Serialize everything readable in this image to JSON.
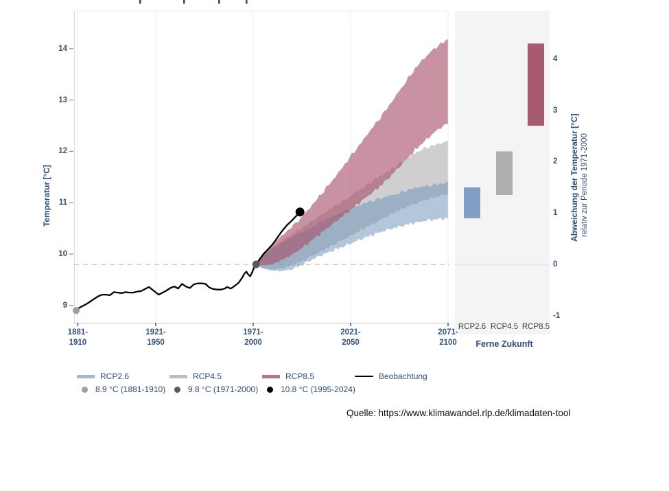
{
  "page": {
    "background": "#ffffff"
  },
  "source_note": "Quelle: https://www.klimawandel.rlp.de/klimadaten-tool",
  "legend": {
    "series": [
      {
        "label": "RCP2.6"
      },
      {
        "label": "RCP4.5"
      },
      {
        "label": "RCP8.5"
      },
      {
        "label": "Beobachtung"
      }
    ],
    "reference_points": [
      {
        "label": "8.9 °C (1881-1910)",
        "color": "#9e9e9e"
      },
      {
        "label": "9.8 °C (1971-2000)",
        "color": "#595959"
      },
      {
        "label": "10.8 °C (1995-2024)",
        "color": "#000000"
      }
    ]
  },
  "chart_data": {
    "type": "area",
    "y_axis_left": {
      "title": "Temperatur [°C]",
      "ticks": [
        9,
        10,
        11,
        12,
        13,
        14
      ],
      "range": [
        8.6,
        14.7
      ]
    },
    "y_axis_right": {
      "title_line1": "Abweichung der Temperatur [°C]",
      "title_line2": "relativ zur Periode 1971-2000",
      "ticks": [
        -1,
        0,
        1,
        2,
        3,
        4
      ]
    },
    "x_axis": {
      "ticks": [
        {
          "line1": "1881-",
          "line2": "1910",
          "year_center": 1895.5
        },
        {
          "line1": "1921-",
          "line2": "1950",
          "year_center": 1935.5
        },
        {
          "line1": "1971-",
          "line2": "2000",
          "year_center": 1985.5
        },
        {
          "line1": "2021-",
          "line2": "2050",
          "year_center": 2035.5
        },
        {
          "line1": "2071-",
          "line2": "2100",
          "year_center": 2085.5
        }
      ]
    },
    "baseline": {
      "temp": 9.8,
      "anomaly": 0,
      "color": "#c6c6c6",
      "panel_line_color": "#dde6f2"
    },
    "gridline_color": "#e7ecf5",
    "observation": {
      "label": "Beobachtung",
      "color": "#000000",
      "points": [
        [
          1894.5,
          8.92
        ],
        [
          1896,
          8.95
        ],
        [
          1898,
          8.99
        ],
        [
          1900,
          9.03
        ],
        [
          1902,
          9.08
        ],
        [
          1904,
          9.13
        ],
        [
          1906,
          9.18
        ],
        [
          1908,
          9.21
        ],
        [
          1910,
          9.21
        ],
        [
          1912,
          9.2
        ],
        [
          1914,
          9.26
        ],
        [
          1916,
          9.25
        ],
        [
          1918,
          9.24
        ],
        [
          1920,
          9.26
        ],
        [
          1922,
          9.25
        ],
        [
          1924,
          9.25
        ],
        [
          1926,
          9.27
        ],
        [
          1928,
          9.28
        ],
        [
          1930,
          9.32
        ],
        [
          1932,
          9.36
        ],
        [
          1934,
          9.3
        ],
        [
          1936,
          9.24
        ],
        [
          1937,
          9.21
        ],
        [
          1939,
          9.25
        ],
        [
          1941,
          9.29
        ],
        [
          1943,
          9.34
        ],
        [
          1945,
          9.37
        ],
        [
          1947,
          9.33
        ],
        [
          1949,
          9.42
        ],
        [
          1951,
          9.37
        ],
        [
          1953,
          9.34
        ],
        [
          1955,
          9.41
        ],
        [
          1957,
          9.43
        ],
        [
          1959,
          9.43
        ],
        [
          1961,
          9.42
        ],
        [
          1963,
          9.35
        ],
        [
          1965,
          9.32
        ],
        [
          1967,
          9.31
        ],
        [
          1969,
          9.31
        ],
        [
          1971,
          9.33
        ],
        [
          1972,
          9.36
        ],
        [
          1974,
          9.33
        ],
        [
          1976,
          9.38
        ],
        [
          1978,
          9.44
        ],
        [
          1980,
          9.55
        ],
        [
          1981,
          9.62
        ],
        [
          1982,
          9.66
        ],
        [
          1983,
          9.6
        ],
        [
          1984,
          9.57
        ],
        [
          1985,
          9.65
        ],
        [
          1986,
          9.74
        ],
        [
          1987,
          9.8
        ],
        [
          1989,
          9.91
        ],
        [
          1991,
          10.01
        ],
        [
          1993,
          10.09
        ],
        [
          1995,
          10.17
        ],
        [
          1997,
          10.27
        ],
        [
          1999,
          10.38
        ],
        [
          2001,
          10.48
        ],
        [
          2003,
          10.57
        ],
        [
          2005,
          10.64
        ],
        [
          2007,
          10.72
        ],
        [
          2009.5,
          10.82
        ]
      ]
    },
    "reference_points": [
      {
        "label": "8.9 °C (1881-1910)",
        "year": 1894.5,
        "temp": 8.9,
        "color": "#9e9e9e",
        "radius": 5
      },
      {
        "label": "9.8 °C (1971-2000)",
        "year": 1987,
        "temp": 9.8,
        "color": "#595959",
        "radius": 5.5
      },
      {
        "label": "10.8 °C (1995-2024)",
        "year": 2009.5,
        "temp": 10.82,
        "color": "#000000",
        "radius": 6.5
      }
    ],
    "scenarios": [
      {
        "label": "RCP2.6",
        "legend_color": "#9fb9d0",
        "band_color": "#6f94b8",
        "band_opacity": 0.52,
        "bar_color": "#7fa0c4",
        "far_future_range": [
          0.9,
          1.5
        ],
        "band": [
          [
            1987,
            9.8,
            9.8
          ],
          [
            1990,
            9.72,
            9.95
          ],
          [
            1995,
            9.68,
            10.1
          ],
          [
            2000,
            9.67,
            10.22
          ],
          [
            2005,
            9.7,
            10.33
          ],
          [
            2010,
            9.78,
            10.42
          ],
          [
            2015,
            9.88,
            10.5
          ],
          [
            2020,
            9.97,
            10.62
          ],
          [
            2025,
            10.05,
            10.72
          ],
          [
            2030,
            10.12,
            10.8
          ],
          [
            2035,
            10.2,
            10.88
          ],
          [
            2040,
            10.28,
            10.95
          ],
          [
            2045,
            10.35,
            11.02
          ],
          [
            2050,
            10.42,
            11.08
          ],
          [
            2055,
            10.48,
            11.13
          ],
          [
            2060,
            10.53,
            11.18
          ],
          [
            2065,
            10.58,
            11.25
          ],
          [
            2070,
            10.62,
            11.3
          ],
          [
            2075,
            10.66,
            11.33
          ],
          [
            2080,
            10.68,
            11.36
          ],
          [
            2085.5,
            10.7,
            11.4
          ]
        ]
      },
      {
        "label": "RCP4.5",
        "legend_color": "#bfbdbd",
        "band_color": "#a0a0a0",
        "band_opacity": 0.5,
        "bar_color": "#b0aeae",
        "far_future_range": [
          1.35,
          2.2
        ],
        "band": [
          [
            1987,
            9.8,
            9.8
          ],
          [
            1990,
            9.74,
            9.96
          ],
          [
            1995,
            9.7,
            10.12
          ],
          [
            2000,
            9.72,
            10.25
          ],
          [
            2005,
            9.78,
            10.38
          ],
          [
            2010,
            9.85,
            10.5
          ],
          [
            2015,
            9.95,
            10.62
          ],
          [
            2020,
            10.05,
            10.75
          ],
          [
            2025,
            10.15,
            10.88
          ],
          [
            2030,
            10.25,
            11.0
          ],
          [
            2035,
            10.35,
            11.12
          ],
          [
            2040,
            10.45,
            11.25
          ],
          [
            2045,
            10.55,
            11.38
          ],
          [
            2050,
            10.65,
            11.5
          ],
          [
            2055,
            10.75,
            11.62
          ],
          [
            2060,
            10.85,
            11.75
          ],
          [
            2065,
            10.93,
            11.88
          ],
          [
            2070,
            11.0,
            12.0
          ],
          [
            2075,
            11.07,
            12.08
          ],
          [
            2080,
            11.12,
            12.14
          ],
          [
            2085.5,
            11.18,
            12.2
          ]
        ]
      },
      {
        "label": "RCP8.5",
        "legend_color": "#bd7287",
        "band_color": "#a64f69",
        "band_opacity": 0.62,
        "bar_color": "#a85a70",
        "far_future_range": [
          2.7,
          4.3
        ],
        "band": [
          [
            1987,
            9.8,
            9.8
          ],
          [
            1990,
            9.78,
            10.0
          ],
          [
            1995,
            9.8,
            10.18
          ],
          [
            2000,
            9.88,
            10.35
          ],
          [
            2005,
            9.98,
            10.52
          ],
          [
            2010,
            10.1,
            10.7
          ],
          [
            2015,
            10.25,
            10.92
          ],
          [
            2020,
            10.4,
            11.15
          ],
          [
            2025,
            10.55,
            11.38
          ],
          [
            2030,
            10.7,
            11.62
          ],
          [
            2035,
            10.85,
            11.88
          ],
          [
            2040,
            11.0,
            12.12
          ],
          [
            2045,
            11.15,
            12.38
          ],
          [
            2050,
            11.3,
            12.62
          ],
          [
            2055,
            11.48,
            12.88
          ],
          [
            2060,
            11.68,
            13.15
          ],
          [
            2065,
            11.88,
            13.42
          ],
          [
            2070,
            12.08,
            13.68
          ],
          [
            2075,
            12.25,
            13.88
          ],
          [
            2080,
            12.42,
            14.05
          ],
          [
            2085.5,
            12.55,
            14.18
          ]
        ]
      }
    ],
    "far_future_panel": {
      "title": "Ferne Zukunft",
      "background": "#f4f4f4",
      "bar_labels": [
        "RCP2.6",
        "RCP4.5",
        "RCP8.5"
      ]
    }
  }
}
